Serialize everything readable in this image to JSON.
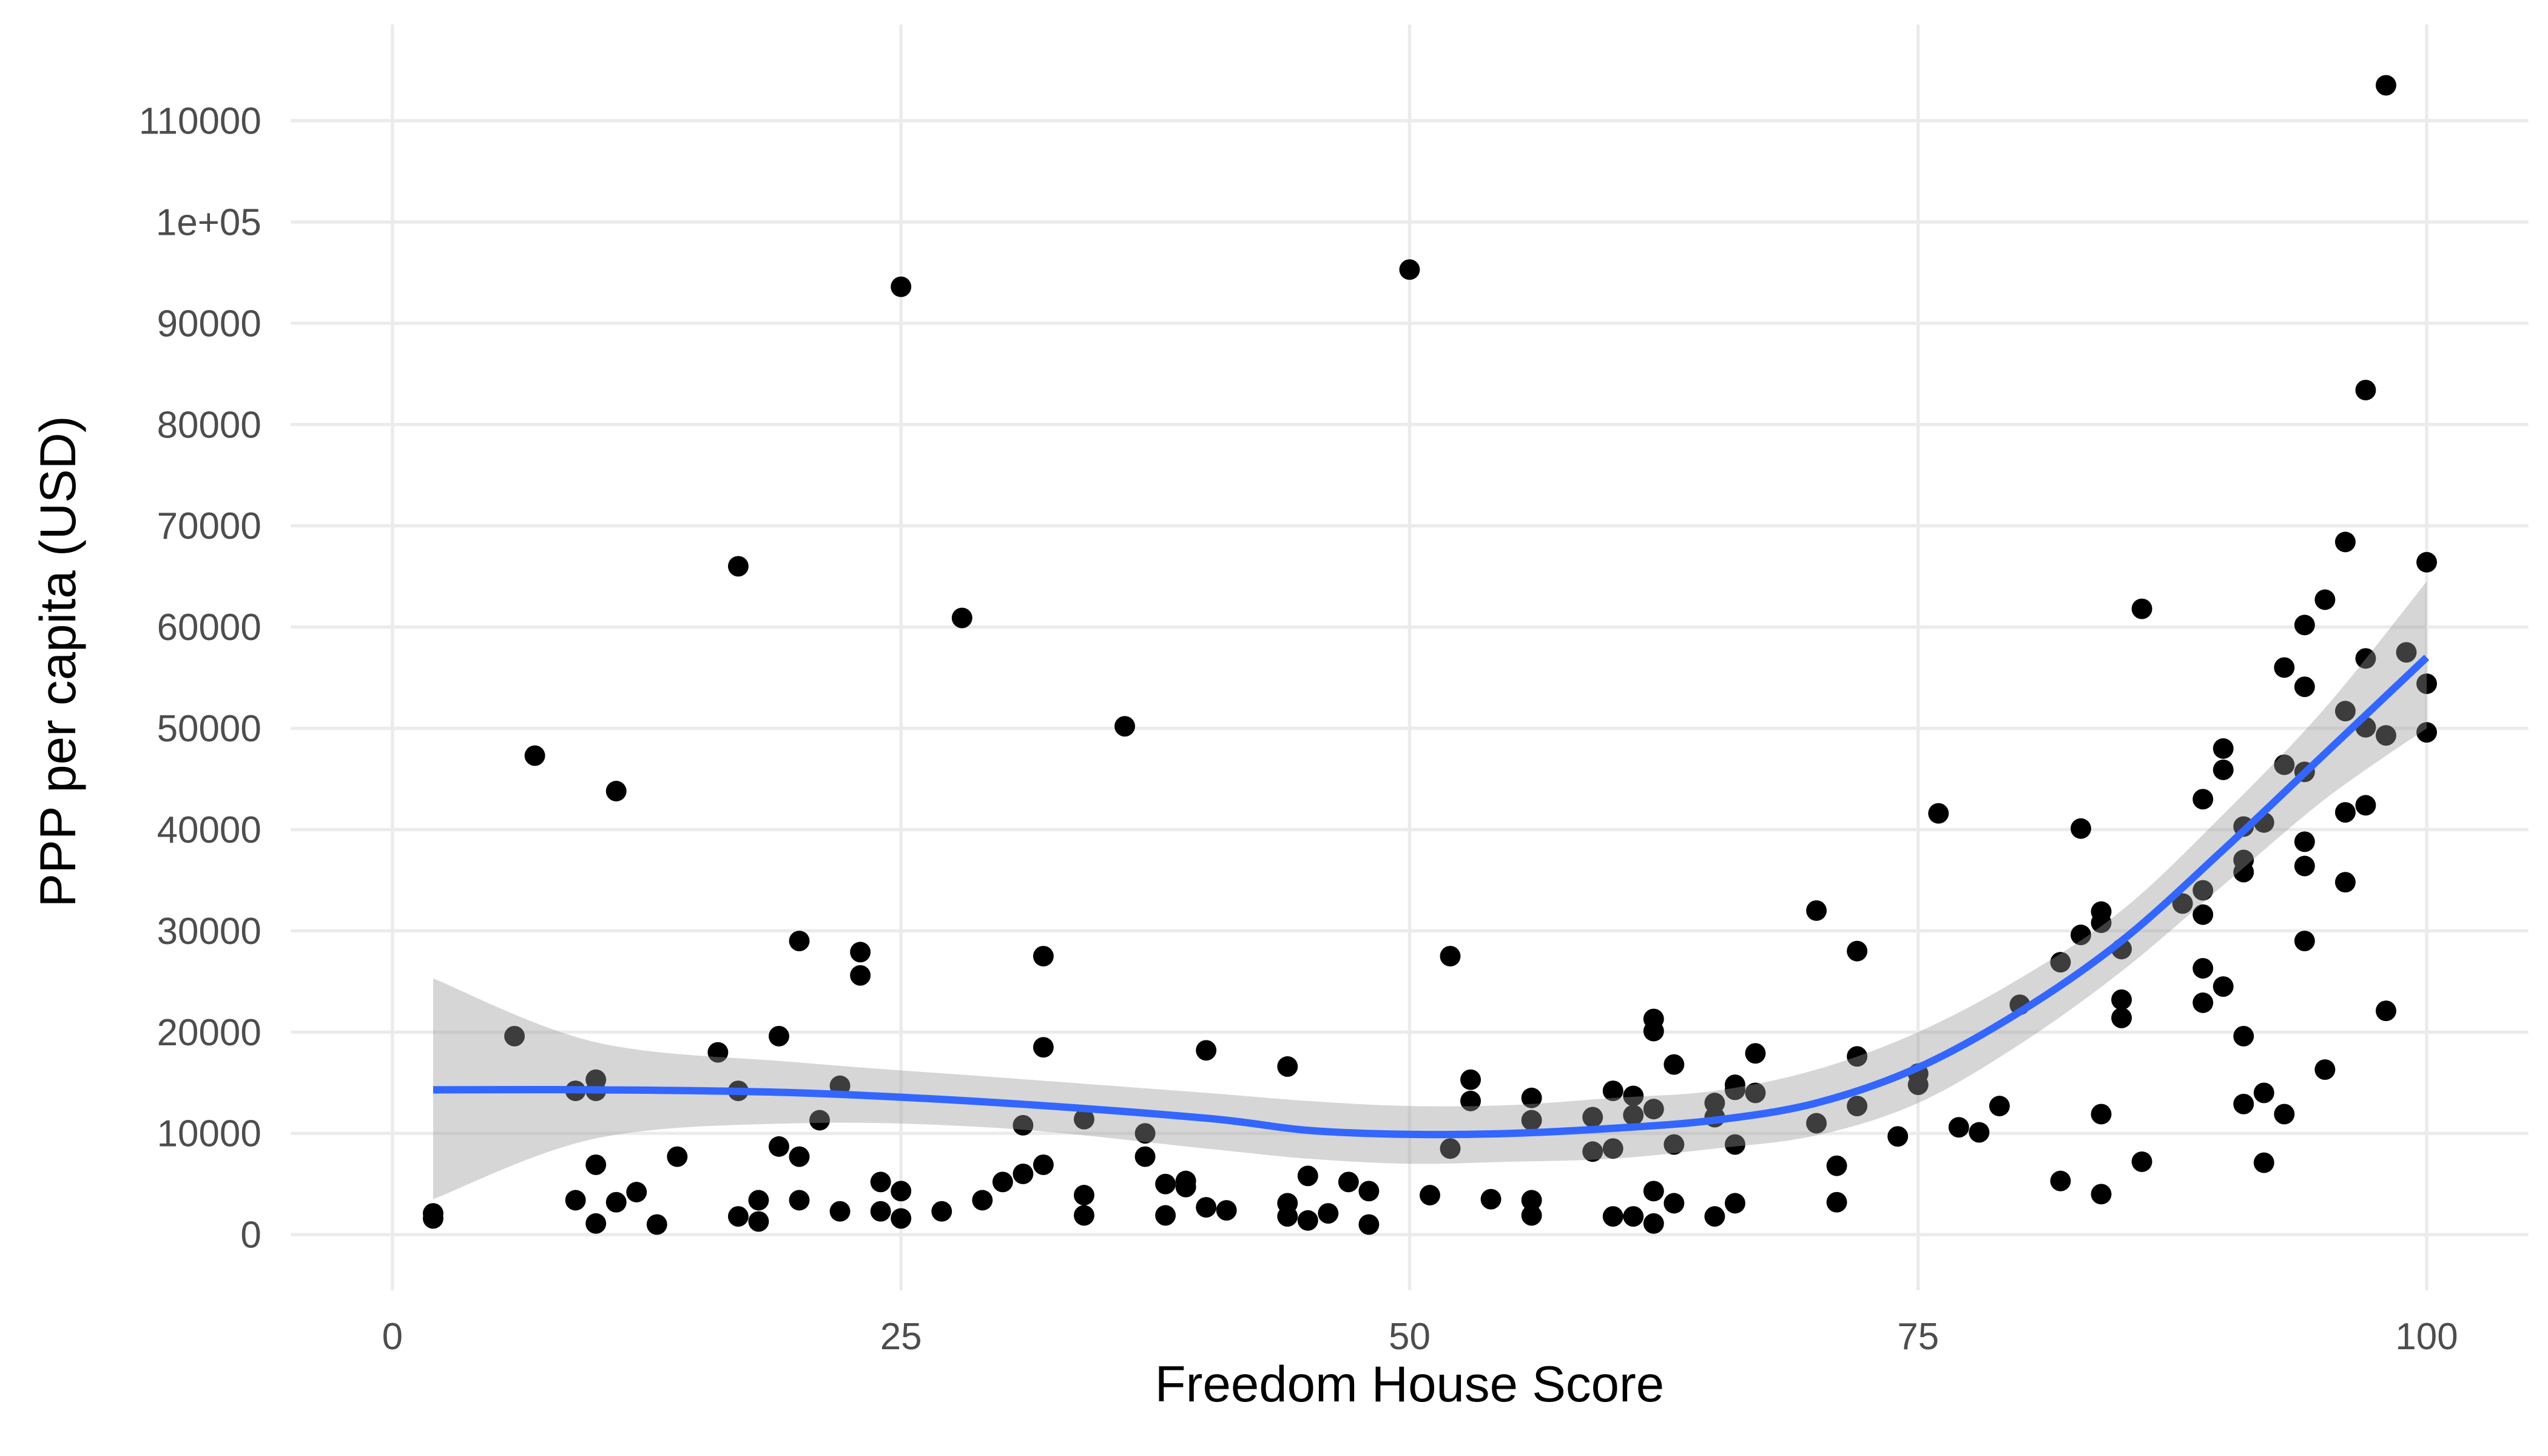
{
  "chart_data": {
    "type": "scatter",
    "x_label": "Freedom House Score",
    "y_label": "PPP per capita (USD)",
    "xlim": [
      -5,
      105
    ],
    "ylim": [
      -5500,
      119500
    ],
    "xticks": [
      0,
      25,
      50,
      75,
      100
    ],
    "yticks": [
      0,
      10000,
      20000,
      30000,
      40000,
      50000,
      60000,
      70000,
      80000,
      90000,
      {
        "value": 100000,
        "label": "1e+05"
      },
      110000
    ],
    "grid": true,
    "color": "#000000",
    "x": [
      2,
      2,
      6,
      7,
      9,
      10,
      10,
      9,
      10,
      10,
      11,
      11,
      12,
      13,
      14,
      16,
      17,
      17,
      17,
      18,
      18,
      19,
      19,
      20,
      20,
      20,
      21,
      22,
      22,
      23,
      23,
      24,
      24,
      25,
      25,
      25,
      27,
      28,
      29,
      30,
      31,
      31,
      32,
      32,
      32,
      34,
      34,
      34,
      36,
      37,
      37,
      38,
      38,
      39,
      39,
      40,
      40,
      41,
      44,
      44,
      44,
      45,
      45,
      46,
      47,
      48,
      48,
      50,
      51,
      52,
      52,
      53,
      53,
      54,
      56,
      56,
      56,
      56,
      59,
      59,
      60,
      60,
      60,
      61,
      61,
      61,
      62,
      62,
      62,
      62,
      62,
      63,
      63,
      63,
      65,
      65,
      65,
      66,
      66,
      66,
      66,
      67,
      67,
      70,
      70,
      71,
      71,
      72,
      72,
      72,
      74,
      75,
      75,
      76,
      77,
      78,
      79,
      80,
      82,
      82,
      83,
      83,
      84,
      84,
      84,
      84,
      85,
      85,
      85,
      86,
      86,
      88,
      89,
      89,
      89,
      89,
      89,
      90,
      90,
      90,
      91,
      91,
      91,
      91,
      91,
      92,
      92,
      92,
      93,
      93,
      93,
      94,
      94,
      94,
      94,
      94,
      94,
      95,
      95,
      96,
      96,
      96,
      96,
      97,
      97,
      97,
      97,
      98,
      98,
      98,
      99,
      100,
      100,
      100
    ],
    "values": [
      2100,
      1600,
      19600,
      47300,
      14200,
      15300,
      14200,
      3400,
      6900,
      1100,
      43800,
      3200,
      4200,
      1000,
      7700,
      18000,
      66000,
      14200,
      1800,
      3400,
      1300,
      19600,
      8700,
      29000,
      7700,
      3400,
      11300,
      14700,
      2300,
      27900,
      25600,
      5200,
      2300,
      93600,
      4300,
      1600,
      2300,
      60900,
      3400,
      5200,
      10800,
      6000,
      27500,
      18500,
      6900,
      11400,
      3900,
      1900,
      50200,
      10000,
      7700,
      5000,
      1900,
      5300,
      4700,
      18200,
      2700,
      2400,
      16600,
      3100,
      1800,
      5800,
      1400,
      2100,
      5200,
      4300,
      1000,
      95300,
      3900,
      27500,
      8500,
      15300,
      13200,
      3500,
      13500,
      11300,
      3400,
      1900,
      11600,
      8200,
      14200,
      8500,
      1800,
      13700,
      11800,
      1800,
      21300,
      20100,
      12400,
      4300,
      1100,
      16800,
      8900,
      3100,
      13000,
      11600,
      1800,
      14800,
      14300,
      8900,
      3100,
      17900,
      14000,
      32000,
      11000,
      6800,
      3200,
      28000,
      17600,
      12700,
      9700,
      15900,
      14800,
      41600,
      10600,
      10100,
      12700,
      22700,
      5300,
      26900,
      40100,
      29600,
      31900,
      30800,
      11900,
      4000,
      28200,
      23200,
      21400,
      61800,
      7200,
      32700,
      43000,
      34000,
      31600,
      26300,
      22900,
      48000,
      45900,
      24500,
      40300,
      37000,
      35800,
      19600,
      12900,
      40700,
      14000,
      7100,
      56000,
      46400,
      11900,
      60200,
      54100,
      45700,
      38800,
      36400,
      29000,
      62700,
      16300,
      68400,
      51700,
      41700,
      34800,
      83400,
      56900,
      50100,
      42400,
      113500,
      49300,
      22100,
      57500,
      66400,
      54400,
      49600
    ],
    "smooth": {
      "color": "#3366ff",
      "band_color": "#999999",
      "x": [
        2,
        10,
        20,
        30,
        40,
        45,
        50,
        55,
        60,
        65,
        70,
        75,
        80,
        85,
        90,
        95,
        100
      ],
      "values": [
        14300,
        14300,
        14000,
        13000,
        11500,
        10300,
        9900,
        10000,
        10500,
        11300,
        13000,
        16500,
        22000,
        29000,
        38000,
        47500,
        57000
      ],
      "lower": [
        3500,
        9500,
        11000,
        10500,
        8500,
        7500,
        7000,
        7200,
        7500,
        8500,
        9800,
        13000,
        18800,
        26000,
        34500,
        43000,
        50000
      ],
      "upper": [
        25300,
        19000,
        17000,
        15500,
        14000,
        13200,
        12700,
        12800,
        13500,
        14200,
        16300,
        20000,
        25300,
        32000,
        41500,
        52000,
        64500
      ]
    }
  }
}
